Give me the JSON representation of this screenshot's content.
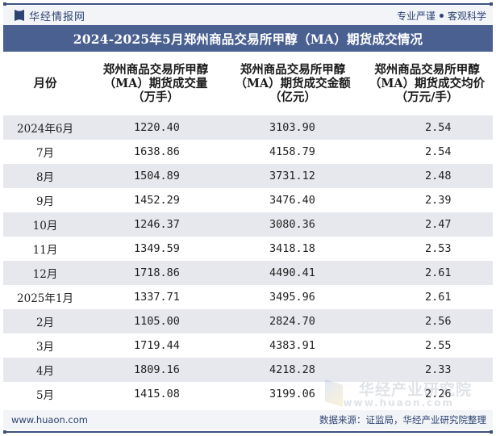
{
  "brand": {
    "name": "华经情报网",
    "slogan_left": "专业严谨",
    "slogan_right": "客观科学",
    "logo_icon": "huajing-logo-icon"
  },
  "title": "2024-2025年5月郑州商品交易所甲醇（MA）期货成交情况",
  "table": {
    "headers": [
      {
        "line1": "月份",
        "line2": "",
        "line3": ""
      },
      {
        "line1": "郑州商品交易所甲醇",
        "line2": "（MA）期货成交量",
        "line3": "（万手）"
      },
      {
        "line1": "郑州商品交易所甲醇",
        "line2": "（MA）期货成交金额",
        "line3": "（亿元）"
      },
      {
        "line1": "郑州商品交易所甲醇",
        "line2": "（MA）期货成交均价",
        "line3": "（万元/手）"
      }
    ],
    "rows": [
      {
        "month": "2024年6月",
        "volume": "1220.40",
        "amount": "3103.90",
        "avg_price": "2.54"
      },
      {
        "month": "7月",
        "volume": "1638.86",
        "amount": "4158.79",
        "avg_price": "2.54"
      },
      {
        "month": "8月",
        "volume": "1504.89",
        "amount": "3731.12",
        "avg_price": "2.48"
      },
      {
        "month": "9月",
        "volume": "1452.29",
        "amount": "3476.40",
        "avg_price": "2.39"
      },
      {
        "month": "10月",
        "volume": "1246.37",
        "amount": "3080.36",
        "avg_price": "2.47"
      },
      {
        "month": "11月",
        "volume": "1349.59",
        "amount": "3418.18",
        "avg_price": "2.53"
      },
      {
        "month": "12月",
        "volume": "1718.86",
        "amount": "4490.41",
        "avg_price": "2.61"
      },
      {
        "month": "2025年1月",
        "volume": "1337.71",
        "amount": "3495.96",
        "avg_price": "2.61"
      },
      {
        "month": "2月",
        "volume": "1105.00",
        "amount": "2824.70",
        "avg_price": "2.56"
      },
      {
        "month": "3月",
        "volume": "1719.44",
        "amount": "4383.91",
        "avg_price": "2.55"
      },
      {
        "month": "4月",
        "volume": "1809.16",
        "amount": "4218.28",
        "avg_price": "2.33"
      },
      {
        "month": "5月",
        "volume": "1415.08",
        "amount": "3199.06",
        "avg_price": "2.26"
      }
    ]
  },
  "footer": {
    "website": "www.huaon.com",
    "source": "数据来源：证监局，华经产业研究院整理"
  },
  "watermark": {
    "name": "华经产业研究院",
    "url": "www.huaon.com"
  },
  "colors": {
    "title_bar": "#4a6091",
    "brand_text": "#2c4374",
    "stripe": "#e6e8ee",
    "rule": "#3d5282"
  },
  "chart_data": {
    "type": "table",
    "title": "2024-2025年5月郑州商品交易所甲醇（MA）期货成交情况",
    "columns": [
      "月份",
      "郑州商品交易所甲醇（MA）期货成交量（万手）",
      "郑州商品交易所甲醇（MA）期货成交金额（亿元）",
      "郑州商品交易所甲醇（MA）期货成交均价（万元/手）"
    ],
    "categories": [
      "2024年6月",
      "7月",
      "8月",
      "9月",
      "10月",
      "11月",
      "12月",
      "2025年1月",
      "2月",
      "3月",
      "4月",
      "5月"
    ],
    "series": [
      {
        "name": "成交量（万手）",
        "values": [
          1220.4,
          1638.86,
          1504.89,
          1452.29,
          1246.37,
          1349.59,
          1718.86,
          1337.71,
          1105.0,
          1719.44,
          1809.16,
          1415.08
        ]
      },
      {
        "name": "成交金额（亿元）",
        "values": [
          3103.9,
          4158.79,
          3731.12,
          3476.4,
          3080.36,
          3418.18,
          4490.41,
          3495.96,
          2824.7,
          4383.91,
          4218.28,
          3199.06
        ]
      },
      {
        "name": "成交均价（万元/手）",
        "values": [
          2.54,
          2.54,
          2.48,
          2.39,
          2.47,
          2.53,
          2.61,
          2.61,
          2.56,
          2.55,
          2.33,
          2.26
        ]
      }
    ],
    "source": "数据来源：证监局，华经产业研究院整理"
  }
}
